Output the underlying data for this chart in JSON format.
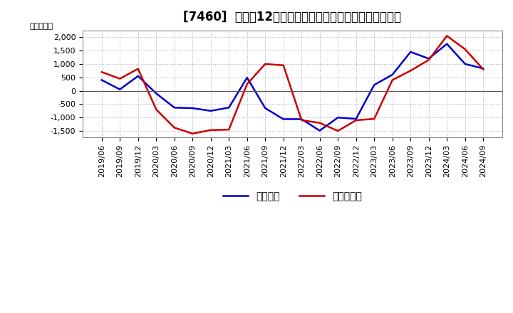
{
  "title": "[7460]  利益だ12か月移動合計の対前年同期増減額の推移",
  "ylabel": "（百万円）",
  "background_color": "#ffffff",
  "plot_background_color": "#ffffff",
  "grid_color": "#aaaaaa",
  "x_labels": [
    "2019/06",
    "2019/09",
    "2019/12",
    "2020/03",
    "2020/06",
    "2020/09",
    "2020/12",
    "2021/03",
    "2021/06",
    "2021/09",
    "2021/12",
    "2022/03",
    "2022/06",
    "2022/09",
    "2022/12",
    "2023/03",
    "2023/06",
    "2023/09",
    "2023/12",
    "2024/03",
    "2024/06",
    "2024/09"
  ],
  "keijo_rieki": [
    400,
    50,
    550,
    -100,
    -630,
    -650,
    -750,
    -630,
    490,
    -650,
    -1060,
    -1060,
    -1490,
    -1000,
    -1050,
    220,
    600,
    1450,
    1200,
    1750,
    1000,
    830
  ],
  "touki_jun_rieki": [
    700,
    450,
    820,
    -700,
    -1380,
    -1600,
    -1470,
    -1450,
    250,
    1000,
    950,
    -1100,
    -1200,
    -1500,
    -1100,
    -1050,
    400,
    750,
    1150,
    2050,
    1550,
    800
  ],
  "keijo_color": "#0000cc",
  "touki_color": "#cc0000",
  "ylim": [
    -1750,
    2250
  ],
  "yticks": [
    -1500,
    -1000,
    -500,
    0,
    500,
    1000,
    1500,
    2000
  ],
  "line_width": 1.8,
  "title_fontsize": 12,
  "legend_fontsize": 10,
  "tick_fontsize": 8,
  "ylabel_fontsize": 8,
  "legend_label_keijo": "経常利益",
  "legend_label_touki": "当期純利益"
}
